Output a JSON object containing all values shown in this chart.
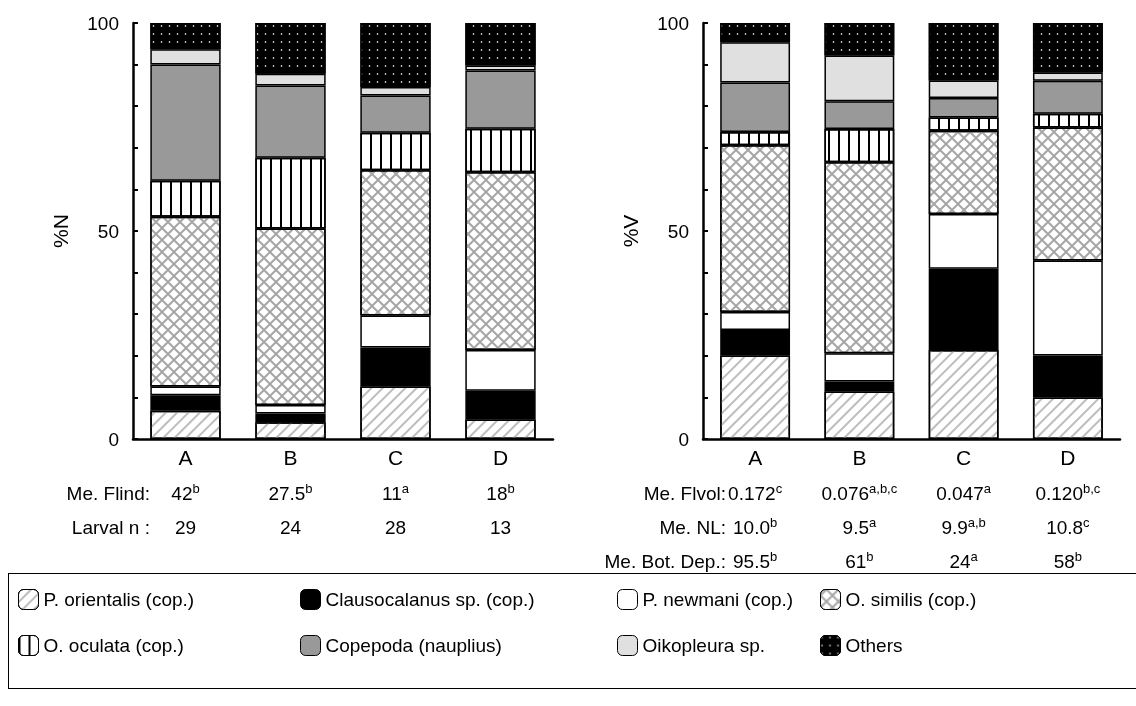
{
  "chart_data": [
    {
      "type": "bar",
      "stacked": true,
      "ylabel": "%N",
      "categories": [
        "A",
        "B",
        "C",
        "D"
      ],
      "ylim": [
        0,
        100
      ],
      "yticks": [
        0,
        {
          "value": 10,
          "label": null
        },
        {
          "value": 20,
          "label": null
        },
        {
          "value": 30,
          "label": null
        },
        {
          "value": 40,
          "label": null
        },
        50,
        {
          "value": 60,
          "label": null
        },
        {
          "value": 70,
          "label": null
        },
        {
          "value": 80,
          "label": null
        },
        {
          "value": 90,
          "label": null
        },
        100
      ],
      "grid": false,
      "legend": "bottom",
      "series": [
        {
          "name": "P. orientalis (cop.)",
          "color": "#ffffff",
          "values": [
            6.8,
            4.0,
            12.6,
            4.7
          ]
        },
        {
          "name": "Clausocalanus sp. (cop.)",
          "color": "#000000",
          "values": [
            3.7,
            2.1,
            9.4,
            6.9
          ]
        },
        {
          "name": "P. newmani (cop.)",
          "color": "#ffffff",
          "values": [
            2.1,
            2.1,
            7.7,
            9.8
          ]
        },
        {
          "name": "O. similis (cop.)",
          "color": "#ffffff",
          "values": [
            40.8,
            42.4,
            34.9,
            42.7
          ]
        },
        {
          "name": "O. oculata (cop.)",
          "color": "#ffffff",
          "values": [
            8.7,
            17.0,
            9.0,
            10.5
          ]
        },
        {
          "name": "Copepoda (nauplius)",
          "color": "#999999",
          "values": [
            27.9,
            17.4,
            9.0,
            14.0
          ]
        },
        {
          "name": "Oikopleura sp.",
          "color": "#e0e0e0",
          "values": [
            3.7,
            2.8,
            2.0,
            1.2
          ]
        },
        {
          "name": "Others",
          "color": "#000000",
          "values": [
            6.3,
            12.2,
            15.4,
            10.2
          ]
        }
      ],
      "annotations": [
        "Me. Flind:",
        "42$^{b}$",
        "27.5$^{b}$",
        "11$^{a}$",
        "18$^{b}$",
        "Larval n :",
        "29",
        "24",
        "28",
        "13"
      ]
    },
    {
      "type": "bar",
      "stacked": true,
      "ylabel": "%V",
      "categories": [
        "A",
        "B",
        "C",
        "D"
      ],
      "ylim": [
        0,
        100
      ],
      "yticks": [
        0,
        {
          "value": 10,
          "label": null
        },
        {
          "value": 20,
          "label": null
        },
        {
          "value": 30,
          "label": null
        },
        {
          "value": 40,
          "label": null
        },
        50,
        {
          "value": 60,
          "label": null
        },
        {
          "value": 70,
          "label": null
        },
        {
          "value": 80,
          "label": null
        },
        {
          "value": 90,
          "label": null
        },
        100
      ],
      "grid": false,
      "series": [
        {
          "color": "#ffffff",
          "values": [
            20.1,
            11.4,
            21.4,
            10.0
          ]
        },
        {
          "color": "#000000",
          "values": [
            6.1,
            2.4,
            19.5,
            10.1
          ]
        },
        {
          "color": "#ffffff",
          "values": [
            4.3,
            6.8,
            13.2,
            22.8
          ]
        },
        {
          "color": "#ffffff",
          "values": [
            40.1,
            45.9,
            20.0,
            32.0
          ]
        },
        {
          "color": "#ffffff",
          "values": [
            3.2,
            8.0,
            3.2,
            3.3
          ]
        },
        {
          "color": "#999999",
          "values": [
            11.9,
            6.7,
            4.7,
            7.9
          ]
        },
        {
          "color": "#e0e0e0",
          "values": [
            9.7,
            11.0,
            4.2,
            2.0
          ]
        },
        {
          "color": "#000000",
          "values": [
            4.6,
            7.8,
            13.8,
            11.9
          ]
        }
      ],
      "annotations": [
        "Me. Flvol:",
        "0.172$^{c}$",
        "0.076$^{a,b,c}$",
        "0.047$^{a}$",
        "0.120$^{b,c}$",
        "Me. NL:",
        "10.0$^{b}$",
        "9.5$^{a}$",
        "9.9$^{a,b}$",
        "10.8$^{c}$",
        "Me. Bot. Dep.:",
        "95.5$^{b}$",
        "61$^{b}$",
        "24$^{a}$",
        "58$^{b}$"
      ]
    }
  ]
}
